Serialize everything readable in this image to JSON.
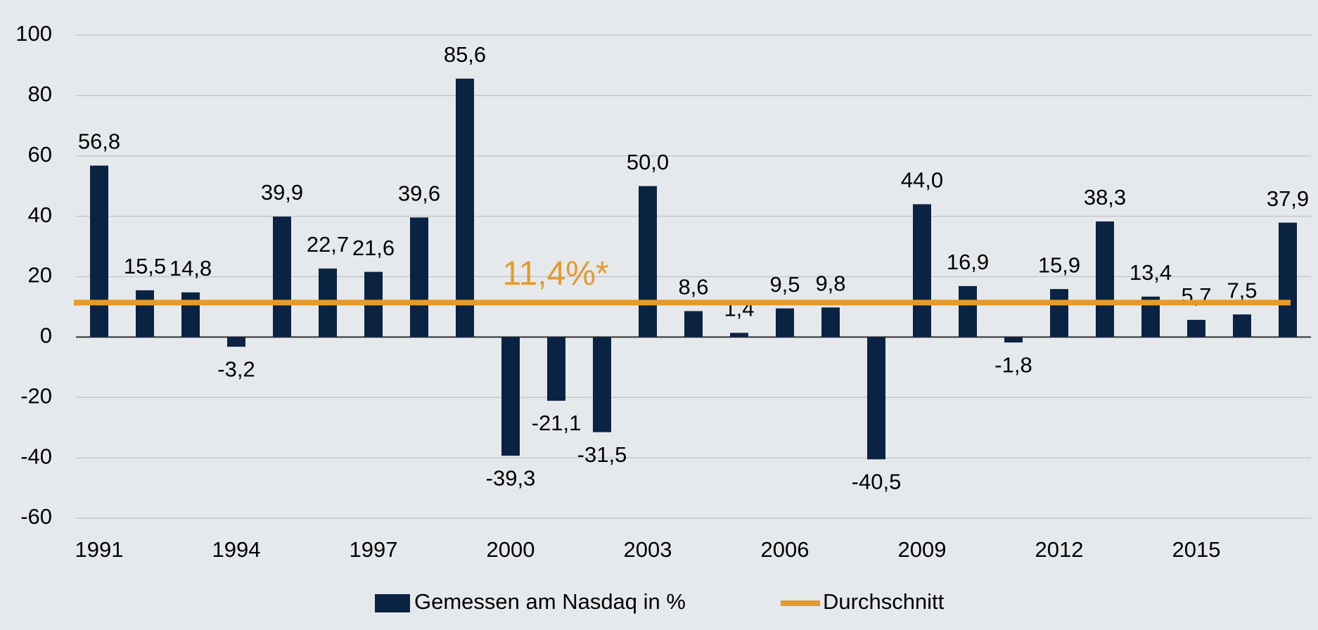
{
  "chart_data": {
    "type": "bar",
    "categories": [
      "1991",
      null,
      null,
      "1994",
      null,
      null,
      "1997",
      null,
      null,
      "2000",
      null,
      null,
      "2003",
      null,
      null,
      "2006",
      null,
      null,
      "2009",
      null,
      null,
      "2012",
      null,
      null,
      "2015",
      null,
      null
    ],
    "series": [
      {
        "name": "Gemessen am Nasdaq in %",
        "color": "#0b2343",
        "values": [
          56.8,
          15.5,
          14.8,
          -3.2,
          39.9,
          22.7,
          21.6,
          39.6,
          85.6,
          -39.3,
          -21.1,
          -31.5,
          50.0,
          8.6,
          1.4,
          9.5,
          9.8,
          -40.5,
          44.0,
          16.9,
          -1.8,
          15.9,
          38.3,
          13.4,
          5.7,
          7.5,
          37.9
        ],
        "value_labels": [
          "56,8",
          "15,5",
          "14,8",
          "-3,2",
          "39,9",
          "22,7",
          "21,6",
          "39,6",
          "85,6",
          "-39,3",
          "-21,1",
          "-31,5",
          "50,0",
          "8,6",
          "1,4",
          "9,5",
          "9,8",
          "-40,5",
          "44,0",
          "16,9",
          "-1,8",
          "15,9",
          "38,3",
          "13,4",
          "5,7",
          "7,5",
          "37,9"
        ]
      },
      {
        "name": "Durchschnitt",
        "color": "#e39b2b",
        "type": "line",
        "values": [
          11.4,
          11.4,
          11.4,
          11.4,
          11.4,
          11.4,
          11.4,
          11.4,
          11.4,
          11.4,
          11.4,
          11.4,
          11.4,
          11.4,
          11.4,
          11.4,
          11.4,
          11.4,
          11.4,
          11.4,
          11.4,
          11.4,
          11.4,
          11.4,
          11.4,
          11.4,
          11.4
        ]
      }
    ],
    "annotations": [
      {
        "text": "11,4%*",
        "value": 11.4
      }
    ],
    "ylim": [
      -60,
      100
    ],
    "yticks": [
      -60,
      -40,
      -20,
      0,
      20,
      40,
      60,
      80,
      100
    ],
    "grid": true,
    "legend": "bottom"
  }
}
